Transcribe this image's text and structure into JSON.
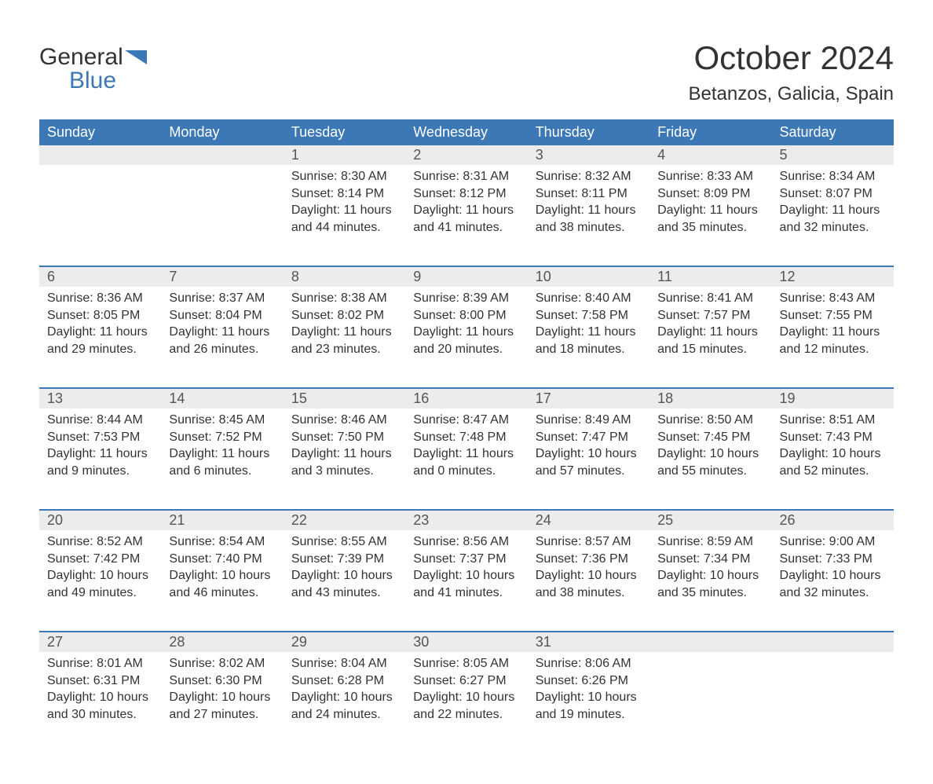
{
  "logo": {
    "general": "General",
    "blue": "Blue"
  },
  "title": "October 2024",
  "subtitle": "Betanzos, Galicia, Spain",
  "colors": {
    "header_bg": "#3b78b5",
    "header_fg": "#ffffff",
    "daynum_bg": "#ececec",
    "row_border": "#3b78b5",
    "text": "#333333",
    "logo_blue": "#3b78b5"
  },
  "weekdays": [
    "Sunday",
    "Monday",
    "Tuesday",
    "Wednesday",
    "Thursday",
    "Friday",
    "Saturday"
  ],
  "weeks": [
    [
      null,
      null,
      {
        "n": "1",
        "sr": "8:30 AM",
        "ss": "8:14 PM",
        "dl": "11 hours and 44 minutes."
      },
      {
        "n": "2",
        "sr": "8:31 AM",
        "ss": "8:12 PM",
        "dl": "11 hours and 41 minutes."
      },
      {
        "n": "3",
        "sr": "8:32 AM",
        "ss": "8:11 PM",
        "dl": "11 hours and 38 minutes."
      },
      {
        "n": "4",
        "sr": "8:33 AM",
        "ss": "8:09 PM",
        "dl": "11 hours and 35 minutes."
      },
      {
        "n": "5",
        "sr": "8:34 AM",
        "ss": "8:07 PM",
        "dl": "11 hours and 32 minutes."
      }
    ],
    [
      {
        "n": "6",
        "sr": "8:36 AM",
        "ss": "8:05 PM",
        "dl": "11 hours and 29 minutes."
      },
      {
        "n": "7",
        "sr": "8:37 AM",
        "ss": "8:04 PM",
        "dl": "11 hours and 26 minutes."
      },
      {
        "n": "8",
        "sr": "8:38 AM",
        "ss": "8:02 PM",
        "dl": "11 hours and 23 minutes."
      },
      {
        "n": "9",
        "sr": "8:39 AM",
        "ss": "8:00 PM",
        "dl": "11 hours and 20 minutes."
      },
      {
        "n": "10",
        "sr": "8:40 AM",
        "ss": "7:58 PM",
        "dl": "11 hours and 18 minutes."
      },
      {
        "n": "11",
        "sr": "8:41 AM",
        "ss": "7:57 PM",
        "dl": "11 hours and 15 minutes."
      },
      {
        "n": "12",
        "sr": "8:43 AM",
        "ss": "7:55 PM",
        "dl": "11 hours and 12 minutes."
      }
    ],
    [
      {
        "n": "13",
        "sr": "8:44 AM",
        "ss": "7:53 PM",
        "dl": "11 hours and 9 minutes."
      },
      {
        "n": "14",
        "sr": "8:45 AM",
        "ss": "7:52 PM",
        "dl": "11 hours and 6 minutes."
      },
      {
        "n": "15",
        "sr": "8:46 AM",
        "ss": "7:50 PM",
        "dl": "11 hours and 3 minutes."
      },
      {
        "n": "16",
        "sr": "8:47 AM",
        "ss": "7:48 PM",
        "dl": "11 hours and 0 minutes."
      },
      {
        "n": "17",
        "sr": "8:49 AM",
        "ss": "7:47 PM",
        "dl": "10 hours and 57 minutes."
      },
      {
        "n": "18",
        "sr": "8:50 AM",
        "ss": "7:45 PM",
        "dl": "10 hours and 55 minutes."
      },
      {
        "n": "19",
        "sr": "8:51 AM",
        "ss": "7:43 PM",
        "dl": "10 hours and 52 minutes."
      }
    ],
    [
      {
        "n": "20",
        "sr": "8:52 AM",
        "ss": "7:42 PM",
        "dl": "10 hours and 49 minutes."
      },
      {
        "n": "21",
        "sr": "8:54 AM",
        "ss": "7:40 PM",
        "dl": "10 hours and 46 minutes."
      },
      {
        "n": "22",
        "sr": "8:55 AM",
        "ss": "7:39 PM",
        "dl": "10 hours and 43 minutes."
      },
      {
        "n": "23",
        "sr": "8:56 AM",
        "ss": "7:37 PM",
        "dl": "10 hours and 41 minutes."
      },
      {
        "n": "24",
        "sr": "8:57 AM",
        "ss": "7:36 PM",
        "dl": "10 hours and 38 minutes."
      },
      {
        "n": "25",
        "sr": "8:59 AM",
        "ss": "7:34 PM",
        "dl": "10 hours and 35 minutes."
      },
      {
        "n": "26",
        "sr": "9:00 AM",
        "ss": "7:33 PM",
        "dl": "10 hours and 32 minutes."
      }
    ],
    [
      {
        "n": "27",
        "sr": "8:01 AM",
        "ss": "6:31 PM",
        "dl": "10 hours and 30 minutes."
      },
      {
        "n": "28",
        "sr": "8:02 AM",
        "ss": "6:30 PM",
        "dl": "10 hours and 27 minutes."
      },
      {
        "n": "29",
        "sr": "8:04 AM",
        "ss": "6:28 PM",
        "dl": "10 hours and 24 minutes."
      },
      {
        "n": "30",
        "sr": "8:05 AM",
        "ss": "6:27 PM",
        "dl": "10 hours and 22 minutes."
      },
      {
        "n": "31",
        "sr": "8:06 AM",
        "ss": "6:26 PM",
        "dl": "10 hours and 19 minutes."
      },
      null,
      null
    ]
  ],
  "labels": {
    "sunrise": "Sunrise: ",
    "sunset": "Sunset: ",
    "daylight": "Daylight: "
  }
}
